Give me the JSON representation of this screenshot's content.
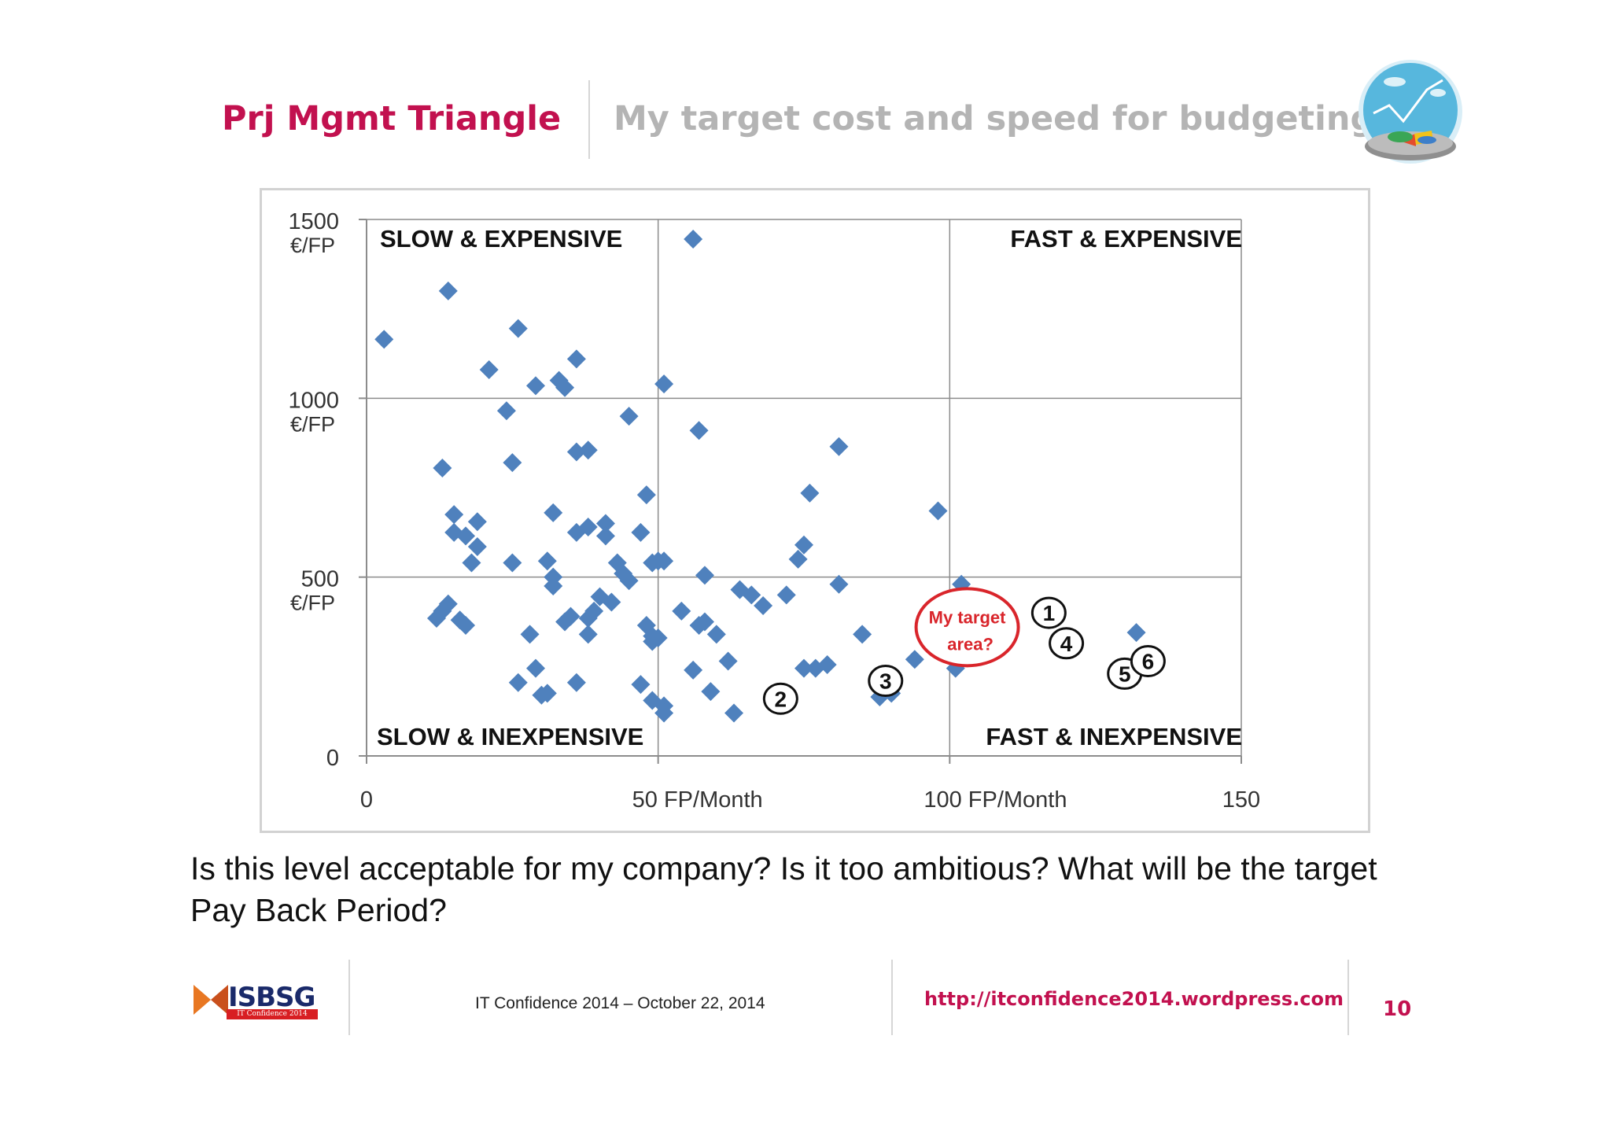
{
  "header": {
    "title_left": "Prj Mgmt Triangle",
    "title_right": "My target cost and speed for budgeting"
  },
  "question": "Is this level acceptable for my company? Is it too ambitious? What will be the target Pay Back Period?",
  "footer": {
    "logo_text": "ISBSG",
    "logo_subtext": "IT Confidence 2014",
    "conference": "IT Confidence 2014 – October 22, 2014",
    "url": "http://itconfidence2014.wordpress.com",
    "page_number": "10"
  },
  "colors": {
    "accent": "#c2114f",
    "muted_title": "#b4b4b4",
    "marker": "#4f81bd",
    "target_circle": "#d9252b"
  },
  "icons": {
    "header_graphic": "chart-globe-icon"
  },
  "chart_data": {
    "type": "scatter",
    "xlim": [
      0,
      150
    ],
    "ylim": [
      0,
      1500
    ],
    "x_ticks": [
      {
        "value": 0,
        "label": "0"
      },
      {
        "value": 50,
        "label": "50 FP/Month"
      },
      {
        "value": 100,
        "label": "100 FP/Month"
      },
      {
        "value": 150,
        "label": "150"
      }
    ],
    "y_ticks": [
      {
        "value": 0,
        "label": "0",
        "unit": ""
      },
      {
        "value": 500,
        "label": "500",
        "unit": "€/FP"
      },
      {
        "value": 1000,
        "label": "1000",
        "unit": "€/FP"
      },
      {
        "value": 1500,
        "label": "1500",
        "unit": "€/FP"
      }
    ],
    "grid": true,
    "quadrants": {
      "top_left": "SLOW & EXPENSIVE",
      "top_right": "FAST & EXPENSIVE",
      "bottom_left": "SLOW & INEXPENSIVE",
      "bottom_right": "FAST & INEXPENSIVE"
    },
    "target_area": {
      "label_line1": "My target",
      "label_line2": "area?",
      "x": 103,
      "y": 360
    },
    "labeled_points": [
      {
        "label": "1",
        "x": 117,
        "y": 400
      },
      {
        "label": "2",
        "x": 71,
        "y": 160
      },
      {
        "label": "3",
        "x": 89,
        "y": 210
      },
      {
        "label": "4",
        "x": 120,
        "y": 315
      },
      {
        "label": "5",
        "x": 130,
        "y": 230
      },
      {
        "label": "6",
        "x": 134,
        "y": 265
      }
    ],
    "points": [
      [
        3,
        1165
      ],
      [
        14,
        1300
      ],
      [
        21,
        1080
      ],
      [
        26,
        1195
      ],
      [
        24,
        965
      ],
      [
        25,
        820
      ],
      [
        29,
        1035
      ],
      [
        33,
        1050
      ],
      [
        34,
        1030
      ],
      [
        36,
        1110
      ],
      [
        45,
        950
      ],
      [
        51,
        1040
      ],
      [
        56,
        1445
      ],
      [
        57,
        910
      ],
      [
        13,
        805
      ],
      [
        15,
        675
      ],
      [
        15,
        625
      ],
      [
        17,
        615
      ],
      [
        19,
        655
      ],
      [
        19,
        585
      ],
      [
        18,
        540
      ],
      [
        25,
        540
      ],
      [
        32,
        680
      ],
      [
        36,
        625
      ],
      [
        38,
        640
      ],
      [
        36,
        850
      ],
      [
        38,
        855
      ],
      [
        41,
        650
      ],
      [
        41,
        615
      ],
      [
        43,
        540
      ],
      [
        44,
        510
      ],
      [
        45,
        490
      ],
      [
        47,
        625
      ],
      [
        48,
        730
      ],
      [
        49,
        540
      ],
      [
        50,
        545
      ],
      [
        51,
        545
      ],
      [
        12,
        385
      ],
      [
        13,
        405
      ],
      [
        14,
        425
      ],
      [
        16,
        380
      ],
      [
        17,
        365
      ],
      [
        28,
        340
      ],
      [
        31,
        545
      ],
      [
        32,
        500
      ],
      [
        32,
        475
      ],
      [
        34,
        375
      ],
      [
        35,
        390
      ],
      [
        38,
        385
      ],
      [
        39,
        405
      ],
      [
        38,
        340
      ],
      [
        40,
        445
      ],
      [
        42,
        430
      ],
      [
        48,
        365
      ],
      [
        49,
        335
      ],
      [
        49,
        320
      ],
      [
        50,
        330
      ],
      [
        54,
        405
      ],
      [
        57,
        365
      ],
      [
        58,
        375
      ],
      [
        58,
        505
      ],
      [
        60,
        340
      ],
      [
        64,
        465
      ],
      [
        66,
        450
      ],
      [
        68,
        420
      ],
      [
        72,
        450
      ],
      [
        74,
        550
      ],
      [
        75,
        590
      ],
      [
        76,
        735
      ],
      [
        81,
        865
      ],
      [
        85,
        340
      ],
      [
        98,
        685
      ],
      [
        102,
        480
      ],
      [
        26,
        205
      ],
      [
        29,
        245
      ],
      [
        31,
        175
      ],
      [
        30,
        170
      ],
      [
        36,
        205
      ],
      [
        47,
        200
      ],
      [
        49,
        155
      ],
      [
        51,
        140
      ],
      [
        51,
        120
      ],
      [
        56,
        240
      ],
      [
        59,
        180
      ],
      [
        62,
        265
      ],
      [
        63,
        120
      ],
      [
        75,
        245
      ],
      [
        77,
        245
      ],
      [
        79,
        255
      ],
      [
        81,
        480
      ],
      [
        88,
        165
      ],
      [
        90,
        175
      ],
      [
        94,
        270
      ],
      [
        101,
        245
      ],
      [
        132,
        345
      ]
    ]
  }
}
